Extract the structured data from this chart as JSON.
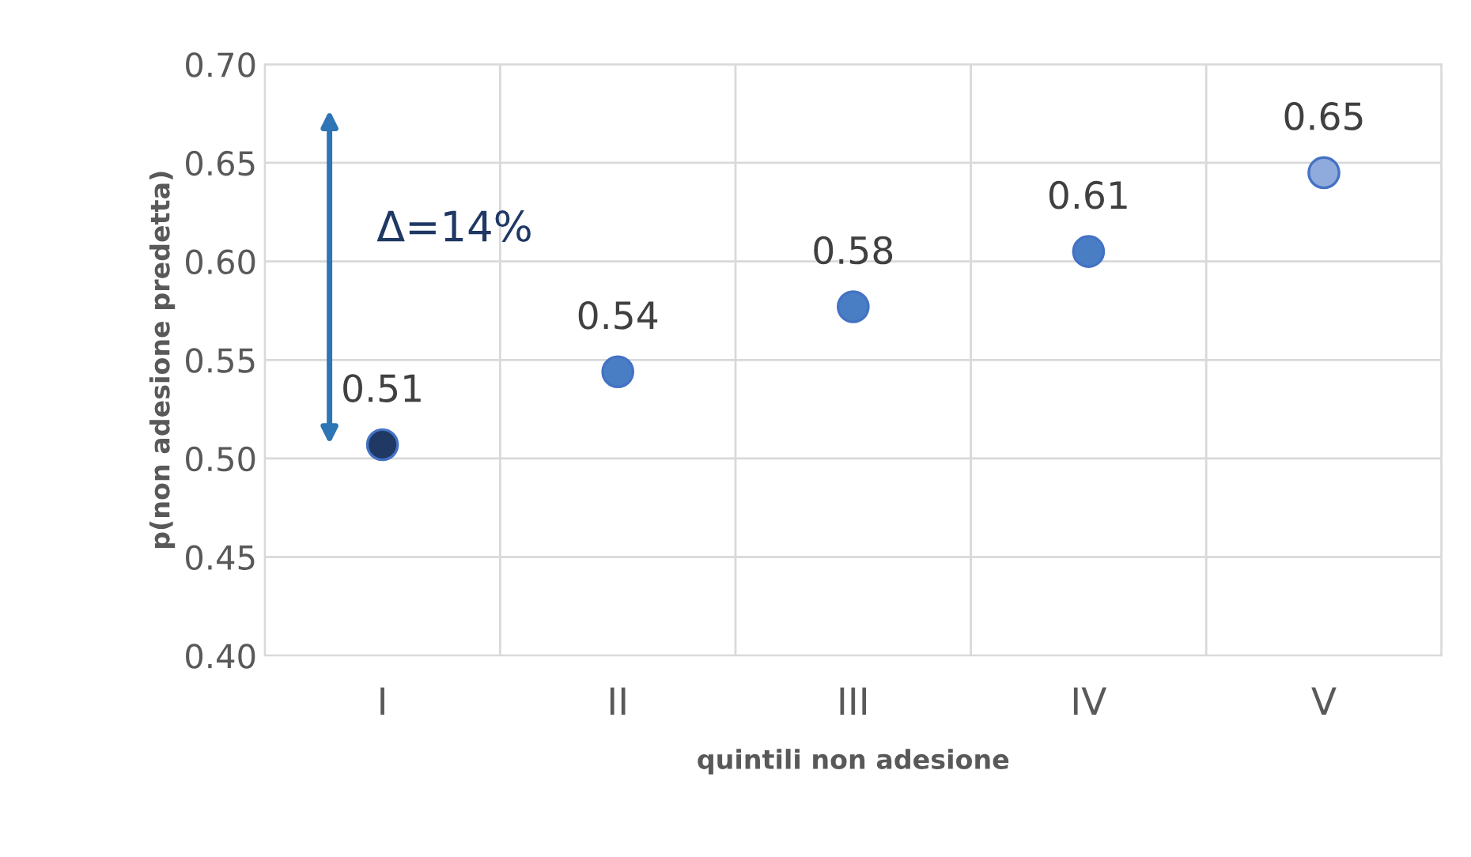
{
  "chart_data": {
    "type": "scatter",
    "xlabel": "quintili non adesione",
    "ylabel": "p(non adesione predetta)",
    "categories": [
      "I",
      "II",
      "III",
      "IV",
      "V"
    ],
    "values": [
      0.507,
      0.544,
      0.577,
      0.605,
      0.645
    ],
    "value_labels": [
      "0.51",
      "0.54",
      "0.58",
      "0.61",
      "0.65"
    ],
    "colors": [
      "#1f3864",
      "#4a7ec4",
      "#4a7ec4",
      "#4a7ec4",
      "#8faadc"
    ],
    "marker": "circle",
    "ylim": [
      0.4,
      0.7
    ],
    "yticks": [
      {
        "value": 0.4,
        "label": "0.40"
      },
      {
        "value": 0.45,
        "label": "0.45"
      },
      {
        "value": 0.5,
        "label": "0.50"
      },
      {
        "value": 0.55,
        "label": "0.55"
      },
      {
        "value": 0.6,
        "label": "0.60"
      },
      {
        "value": 0.65,
        "label": "0.65"
      },
      {
        "value": 0.7,
        "label": "0.70"
      }
    ],
    "grid": true,
    "annotations": [
      "Δ=14%"
    ]
  }
}
